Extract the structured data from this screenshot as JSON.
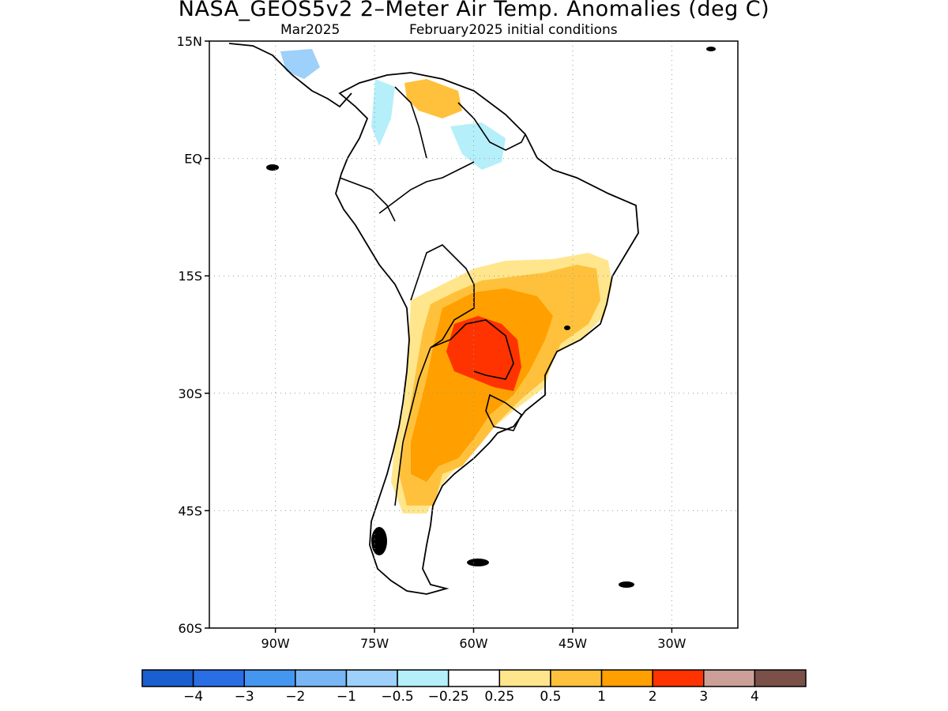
{
  "title": "NASA_GEOS5v2 2–Meter Air Temp. Anomalies (deg C)",
  "subtitle_left": "Mar2025",
  "subtitle_right": "February2025 initial conditions",
  "map": {
    "lon_range": [
      -100,
      -20
    ],
    "lat_range": [
      -60,
      15
    ],
    "lat_ticks": [
      {
        "value": 15,
        "label": "15N"
      },
      {
        "value": 0,
        "label": "EQ"
      },
      {
        "value": -15,
        "label": "15S"
      },
      {
        "value": -30,
        "label": "30S"
      },
      {
        "value": -45,
        "label": "45S"
      },
      {
        "value": -60,
        "label": "60S"
      }
    ],
    "lon_ticks": [
      {
        "value": -90,
        "label": "90W"
      },
      {
        "value": -75,
        "label": "75W"
      },
      {
        "value": -60,
        "label": "60W"
      },
      {
        "value": -45,
        "label": "45W"
      },
      {
        "value": -30,
        "label": "30W"
      }
    ],
    "grid": true
  },
  "colorbar": {
    "colors": [
      "#1a5fd0",
      "#2a6ee6",
      "#4596f0",
      "#78b6f5",
      "#9dd0fa",
      "#b4effa",
      "#ffffff",
      "#ffe68c",
      "#ffc13c",
      "#ff9f00",
      "#ff3300",
      "#cca098",
      "#7a5048"
    ],
    "labels": [
      "−4",
      "−3",
      "−2",
      "−1",
      "−0.5",
      "−0.25",
      "0.25",
      "0.5",
      "1",
      "2",
      "3",
      "4"
    ]
  }
}
